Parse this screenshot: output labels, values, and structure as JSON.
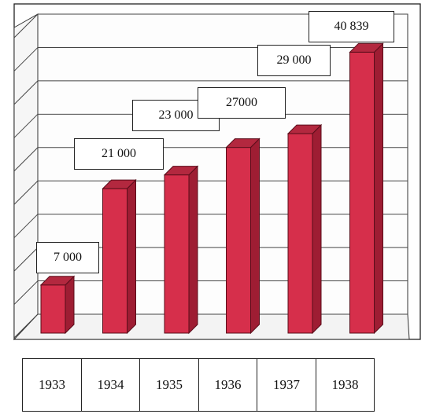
{
  "chart_data": {
    "type": "bar",
    "categories": [
      "1933",
      "1934",
      "1935",
      "1936",
      "1937",
      "1938"
    ],
    "values": [
      7000,
      21000,
      23000,
      27000,
      29000,
      40839
    ],
    "data_labels": [
      "7 000",
      "21 000",
      "23 000",
      "27000",
      "29 000",
      "40 839"
    ],
    "ylim": [
      0,
      45000
    ],
    "grid": true,
    "style": "3d",
    "bar_color": "#d62f4b",
    "bar_side_color": "#9e1d33",
    "bar_top_color": "#b3283f"
  }
}
